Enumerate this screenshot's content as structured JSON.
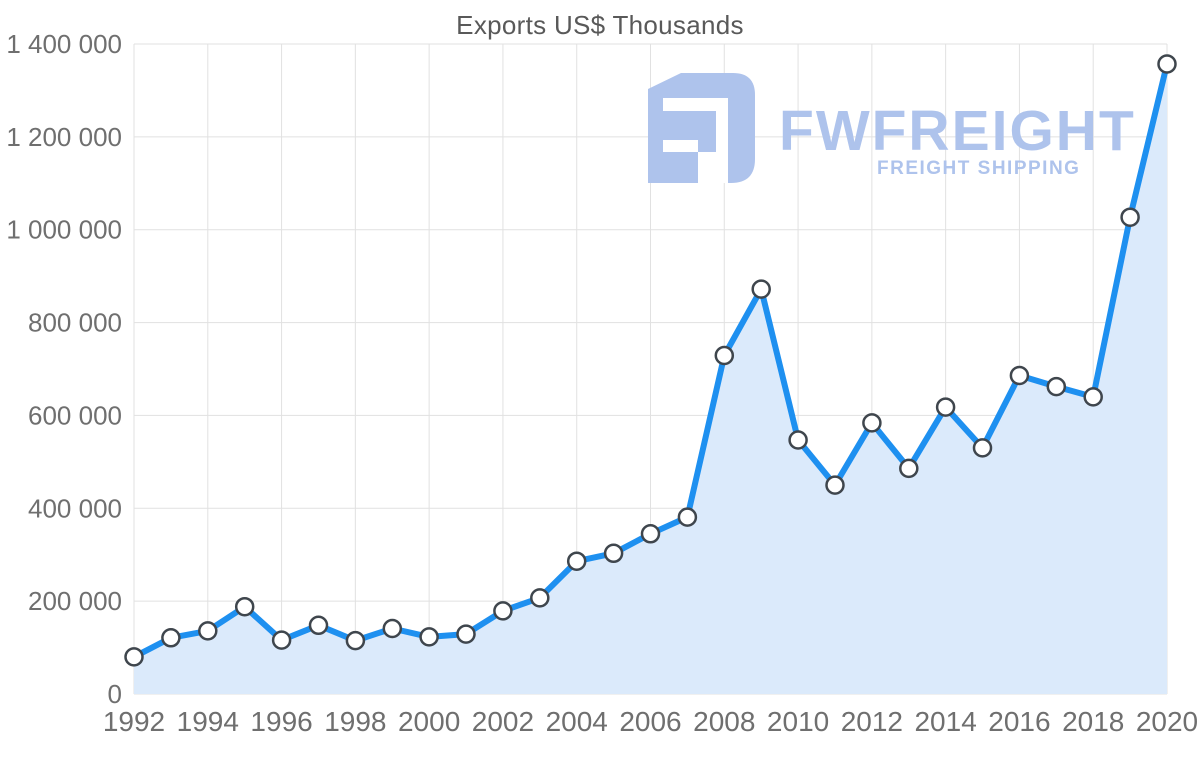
{
  "watermark": {
    "brand": "FWFREIGHT",
    "tagline": "FREIGHT SHIPPING",
    "logo_icon": "fwfreight-logo"
  },
  "chart_data": {
    "type": "area",
    "title": "Exports US$ Thousands",
    "xlabel": "",
    "ylabel": "",
    "legend": false,
    "grid": true,
    "x": [
      1992,
      1993,
      1994,
      1995,
      1996,
      1997,
      1998,
      1999,
      2000,
      2001,
      2002,
      2003,
      2004,
      2005,
      2006,
      2007,
      2008,
      2009,
      2010,
      2011,
      2012,
      2013,
      2014,
      2015,
      2016,
      2017,
      2018,
      2019,
      2020
    ],
    "values": [
      80000,
      121000,
      136000,
      188000,
      116000,
      148000,
      115000,
      141000,
      123000,
      129000,
      179000,
      207000,
      286000,
      303000,
      345000,
      381000,
      729000,
      872000,
      547000,
      450000,
      584000,
      486000,
      618000,
      530000,
      686000,
      662000,
      640000,
      1027000,
      1357000
    ],
    "ylim": [
      0,
      1400000
    ],
    "y_tick_step": 200000,
    "y_tick_labels": [
      "0",
      "200 000",
      "400 000",
      "600 000",
      "800 000",
      "1 000 000",
      "1 200 000",
      "1 400 000"
    ],
    "x_tick_labels": [
      "1992",
      "1994",
      "1996",
      "1998",
      "2000",
      "2002",
      "2004",
      "2006",
      "2008",
      "2010",
      "2012",
      "2014",
      "2016",
      "2018",
      "2020"
    ],
    "colors": {
      "line": "#1e90f0",
      "area": "#dbeafb",
      "marker_fill": "#ffffff",
      "marker_stroke": "#3f464d",
      "grid": "#e1e1e1",
      "axis_label": "#6f6f6f",
      "title": "#595959",
      "watermark": "#aec3ec",
      "background": "#ffffff"
    }
  }
}
